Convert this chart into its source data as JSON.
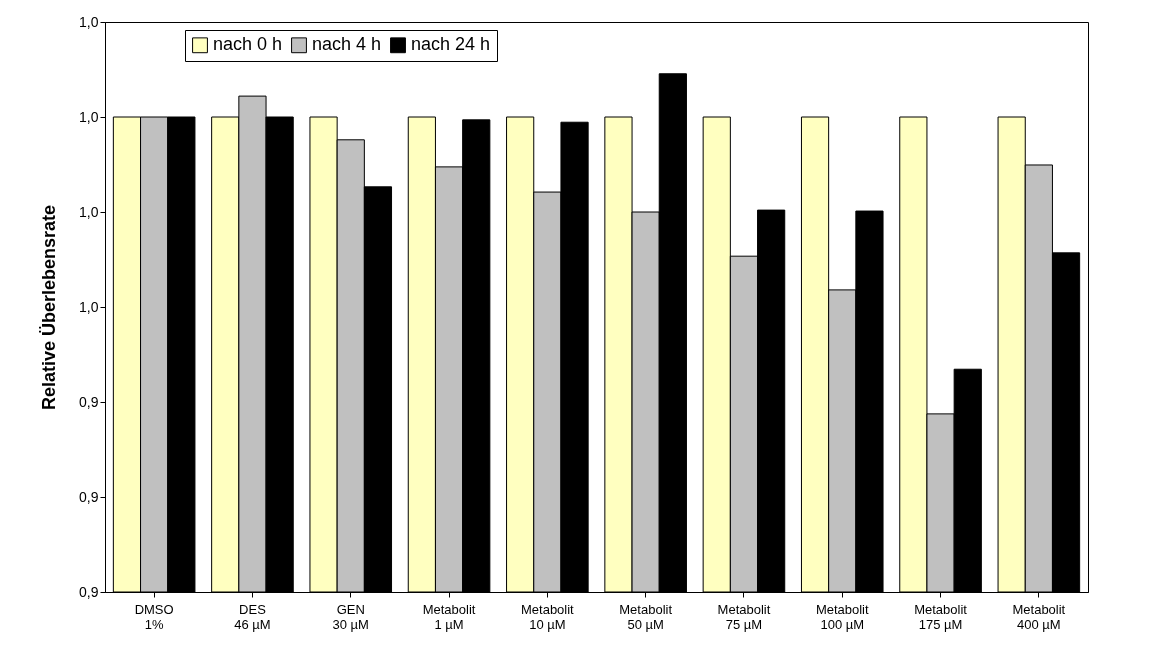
{
  "chart_data": {
    "type": "bar",
    "ylabel": "Relative Überlebensrate",
    "categories": [
      "DMSO\n1%",
      "DES\n46 µM",
      "GEN\n30 µM",
      "Metabolit\n1 µM",
      "Metabolit\n10 µM",
      "Metabolit\n50 µM",
      "Metabolit\n75 µM",
      "Metabolit\n100 µM",
      "Metabolit\n175 µM",
      "Metabolit\n400 µM"
    ],
    "series": [
      {
        "name": "nach 0 h",
        "color": "#ffffc0",
        "values": [
          1,
          1,
          1,
          1,
          1,
          1,
          1,
          1,
          1,
          1
        ]
      },
      {
        "name": "nach 4 h",
        "color": "#c0c0c0",
        "values": [
          1,
          1.0044,
          0.9952,
          0.9895,
          0.9842,
          0.98,
          0.9707,
          0.9636,
          0.9375,
          0.9899
        ]
      },
      {
        "name": "nach 24 h",
        "color": "#000000",
        "values": [
          1,
          1,
          0.9853,
          0.9994,
          0.9989,
          1.0091,
          0.9804,
          0.9802,
          0.9469,
          0.9714
        ]
      }
    ],
    "ylim": [
      0.9,
      1.02
    ],
    "yticks": [
      {
        "value": 0.9,
        "label": "0,9"
      },
      {
        "value": 0.92,
        "label": "0,9"
      },
      {
        "value": 0.94,
        "label": "0,9"
      },
      {
        "value": 0.96,
        "label": "1,0"
      },
      {
        "value": 0.98,
        "label": "1,0"
      },
      {
        "value": 1,
        "label": "1,0"
      },
      {
        "value": 1.02,
        "label": "1,0"
      }
    ],
    "grid": false,
    "legend": "top left"
  }
}
